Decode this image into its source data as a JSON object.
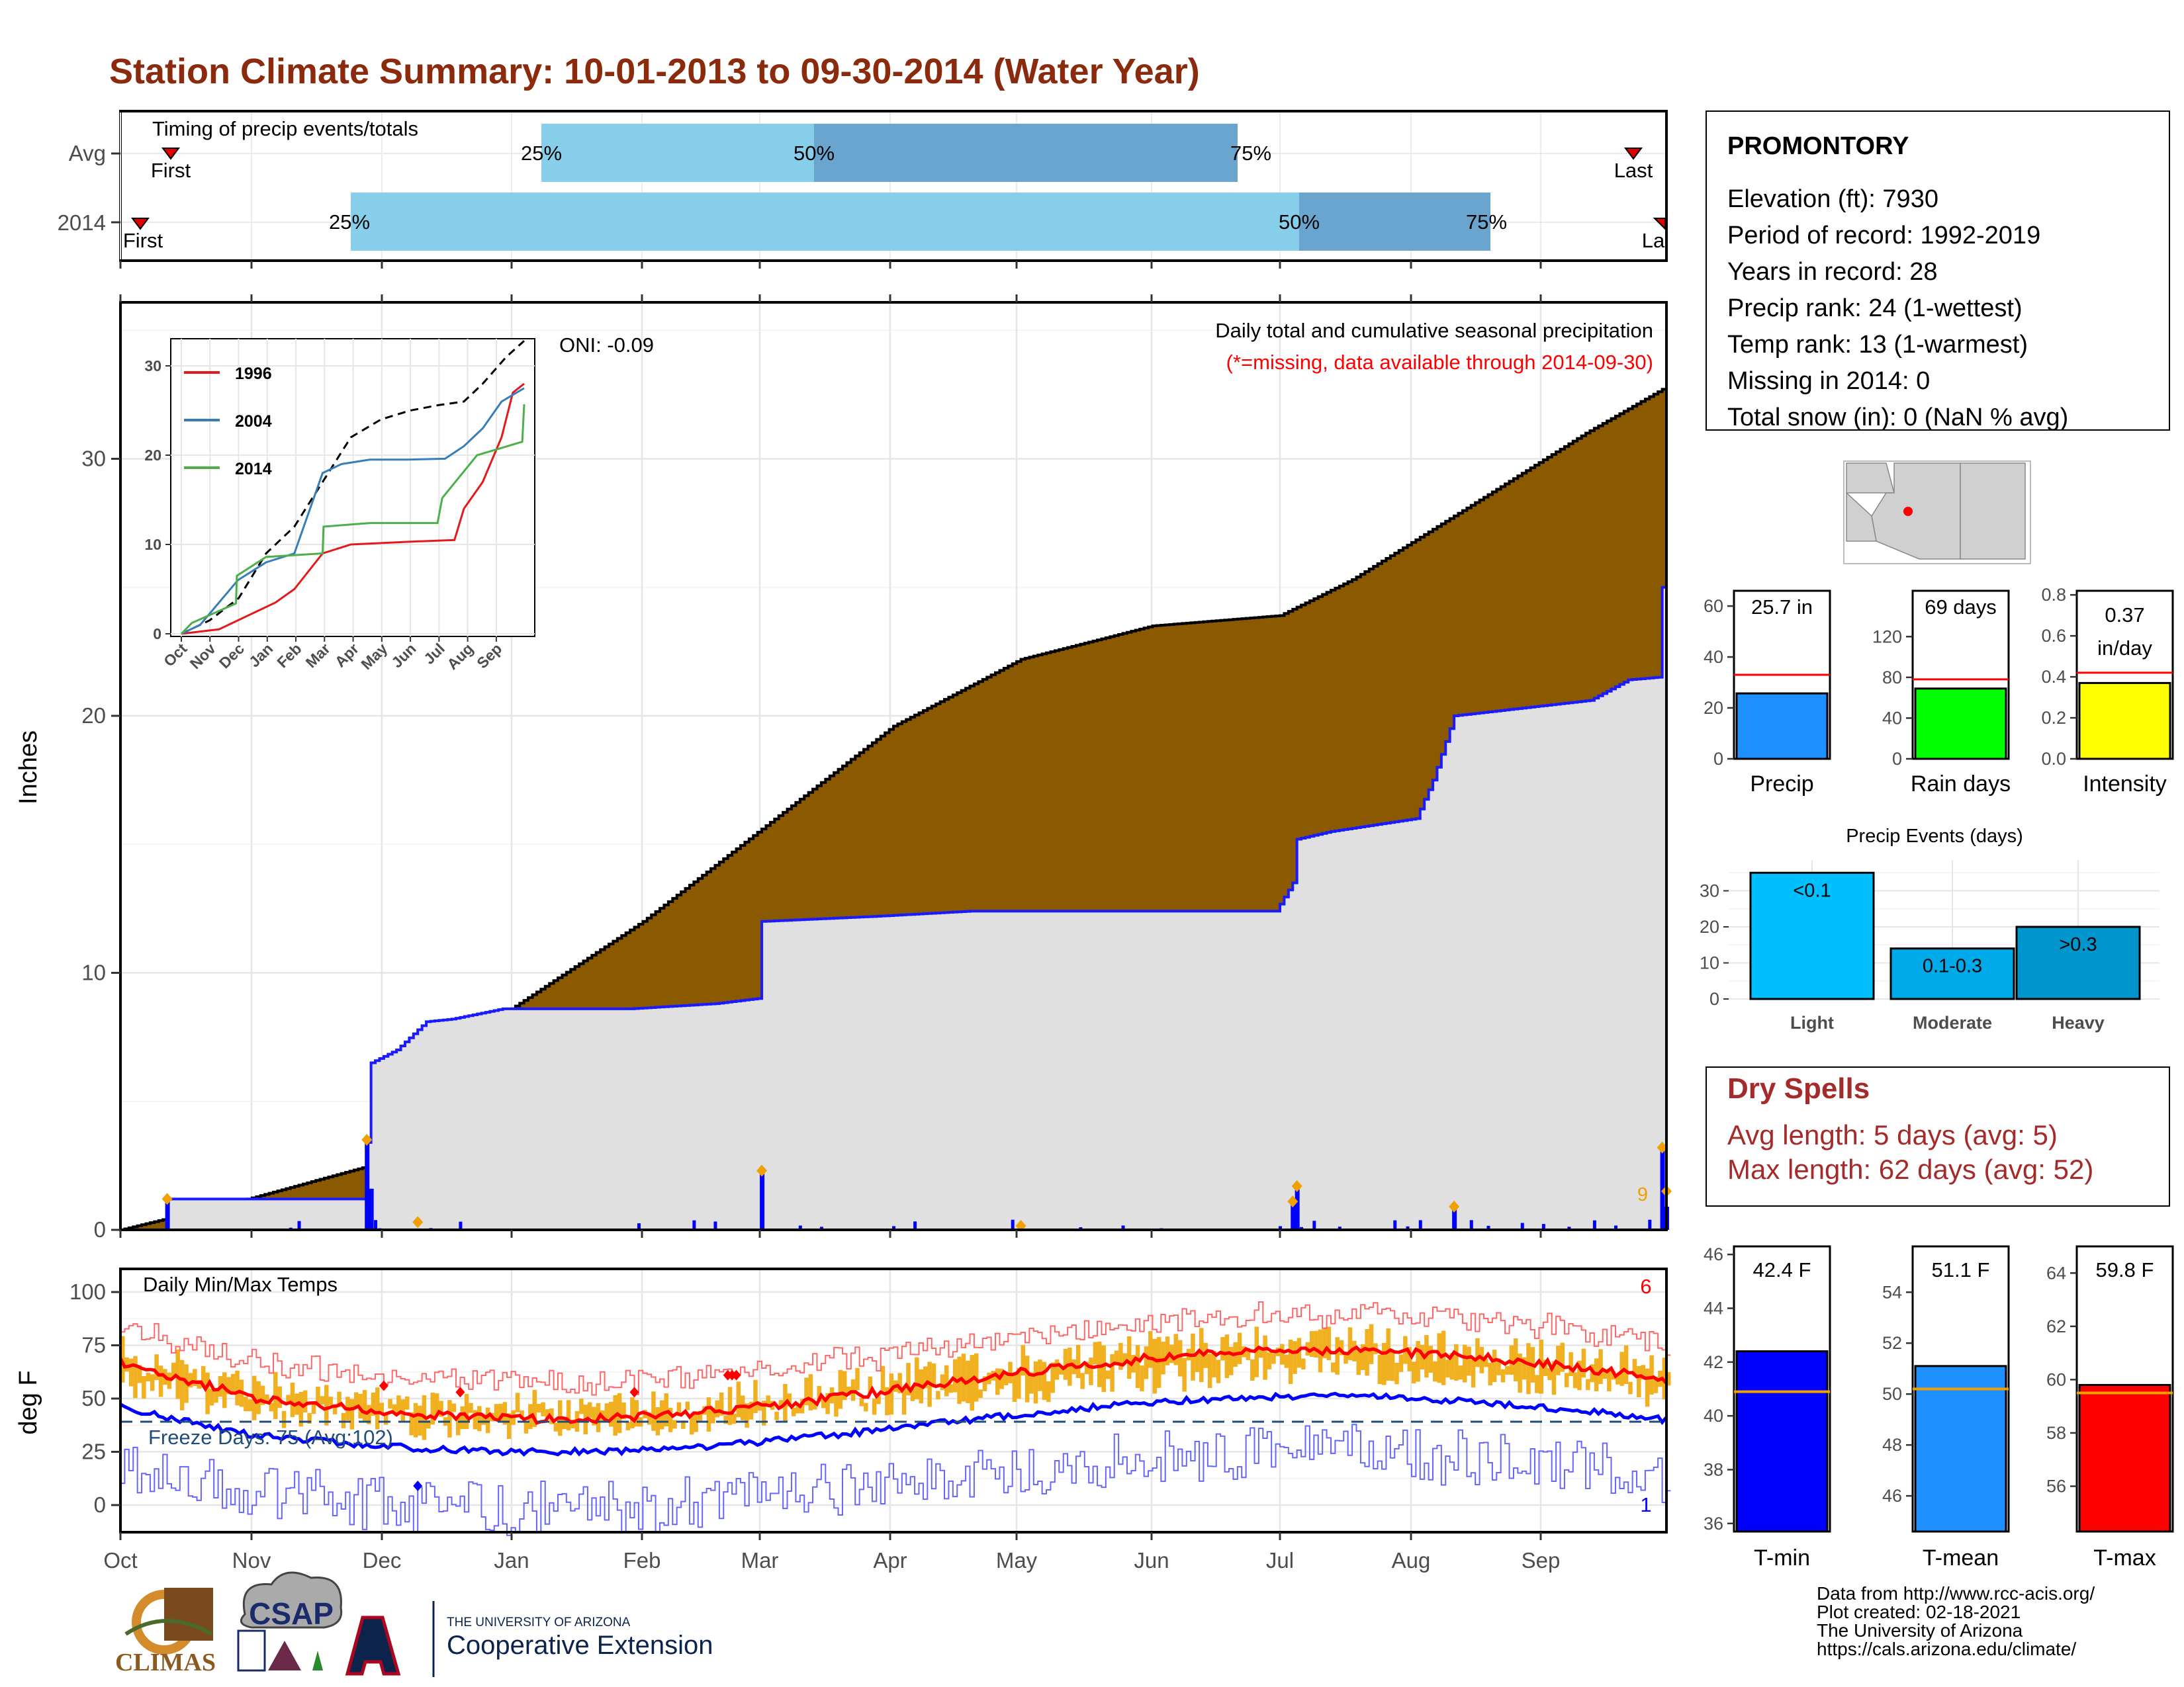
{
  "title": "Station Climate Summary: 10-01-2013 to 09-30-2014 (Water Year)",
  "colors": {
    "title": "#8b2a0c",
    "brown": "#8b5a00",
    "green": "#008000",
    "blue": "#0000ff",
    "lightblue": "#87ceeb",
    "midblue": "#6aa5cf",
    "gray": "#e0e0e0",
    "orange": "#f0b020",
    "red": "#ff0000",
    "dryspell": "#a52a2a"
  },
  "timing": {
    "title": "Timing of precip events/totals",
    "rows": [
      {
        "label": "Avg",
        "first_label": "First",
        "last_label": "Last",
        "q25": "25%",
        "q50": "50%",
        "q75": "75%"
      },
      {
        "label": "2014",
        "first_label": "First",
        "last_label": "La",
        "q25": "25%",
        "q50": "50%",
        "q75": "75%"
      }
    ]
  },
  "months": [
    "Oct",
    "Nov",
    "Dec",
    "Jan",
    "Feb",
    "Mar",
    "Apr",
    "May",
    "Jun",
    "Jul",
    "Aug",
    "Sep"
  ],
  "precip_panel": {
    "ylabel": "Inches",
    "yticks": [
      "0",
      "10",
      "20",
      "30"
    ],
    "title": "Daily total and cumulative seasonal precipitation",
    "subtitle": "(*=missing, data available through 2014-09-30)",
    "oni": "ONI: -0.09",
    "corner_count": "9"
  },
  "inset": {
    "yticks": [
      "0",
      "10",
      "20",
      "30"
    ],
    "months": [
      "Oct",
      "Nov",
      "Dec",
      "Jan",
      "Feb",
      "Mar",
      "Apr",
      "May",
      "Jun",
      "Jul",
      "Aug",
      "Sep"
    ],
    "legend": [
      "1996",
      "2004",
      "2014"
    ],
    "legend_colors": [
      "#e31a1c",
      "#377eb8",
      "#4daf4a"
    ]
  },
  "temp_panel": {
    "ylabel": "deg F",
    "yticks": [
      "0",
      "25",
      "50",
      "75",
      "100"
    ],
    "title": "Daily Min/Max Temps",
    "freeze": "Freeze Days: 75 (Avg:102)",
    "max_count": "6",
    "min_count": "1"
  },
  "station": {
    "name": "PROMONTORY",
    "lines": [
      "Elevation (ft): 7930",
      "Period of record: 1992-2019",
      "Years in record: 28",
      "Precip rank: 24 (1-wettest)",
      "Temp rank: 13 (1-warmest)",
      "Missing in 2014: 0",
      "Total snow (in): 0 (NaN % avg)"
    ]
  },
  "summary_bars": [
    {
      "name": "Precip",
      "label": "25.7 in",
      "value": 25.7,
      "avg": 33,
      "ymax": 66,
      "ticks": [
        "0",
        "20",
        "40",
        "60"
      ],
      "color": "#1e90ff"
    },
    {
      "name": "Rain days",
      "label": "69 days",
      "value": 69,
      "avg": 78,
      "ymax": 165,
      "ticks": [
        "0",
        "40",
        "80",
        "120"
      ],
      "color": "#00ff00"
    },
    {
      "name": "Intensity",
      "label": "0.37 in/day",
      "value": 0.37,
      "avg": 0.42,
      "ymax": 0.82,
      "ticks": [
        "0.0",
        "0.2",
        "0.4",
        "0.6",
        "0.8"
      ],
      "color": "#ffff00"
    }
  ],
  "events": {
    "title": "Precip Events (days)",
    "yticks": [
      "0",
      "10",
      "20",
      "30"
    ],
    "bars": [
      {
        "name": "Light",
        "label": "<0.1",
        "value": 35,
        "color": "#00bfff"
      },
      {
        "name": "Moderate",
        "label": "0.1-0.3",
        "value": 14,
        "color": "#00a9e8"
      },
      {
        "name": "Heavy",
        "label": ">0.3",
        "value": 20,
        "color": "#0095cc"
      }
    ]
  },
  "dry_spells": {
    "title": "Dry Spells",
    "avg": "Avg length: 5 days (avg: 5)",
    "max": "Max length: 62 days (avg: 52)"
  },
  "temp_bars": [
    {
      "name": "T-min",
      "label": "42.4 F",
      "value": 42.4,
      "avg": 40.9,
      "ticks": [
        "36",
        "38",
        "40",
        "42",
        "44",
        "46"
      ],
      "tmin": 35.7,
      "tmax": 46.3,
      "color": "#0000ff"
    },
    {
      "name": "T-mean",
      "label": "51.1 F",
      "value": 51.1,
      "avg": 50.2,
      "ticks": [
        "46",
        "48",
        "50",
        "52",
        "54"
      ],
      "tmin": 44.6,
      "tmax": 55.8,
      "color": "#1e90ff"
    },
    {
      "name": "T-max",
      "label": "59.8 F",
      "value": 59.8,
      "avg": 59.5,
      "ticks": [
        "56",
        "58",
        "60",
        "62",
        "64"
      ],
      "tmin": 54.3,
      "tmax": 65.0,
      "color": "#ff0000"
    }
  ],
  "footer": {
    "lines": [
      "Data from http://www.rcc-acis.org/",
      "Plot created: 02-18-2021",
      "The University of Arizona",
      "https://cals.arizona.edu/climate/"
    ],
    "climas": "CLIMAS",
    "csap": "CSAP",
    "ua_small": "THE UNIVERSITY OF ARIZONA",
    "ua_big": "Cooperative Extension"
  },
  "chart_data": [
    {
      "type": "area",
      "title": "Daily total and cumulative seasonal precipitation",
      "ylabel": "Inches",
      "ylim": [
        0,
        36
      ],
      "series": [
        {
          "name": "2014",
          "x": [
            "Oct",
            "Nov",
            "Dec",
            "Jan",
            "Feb",
            "Mar",
            "Apr",
            "May",
            "Jun",
            "Jul",
            "Aug",
            "Sep",
            "Sep 30"
          ],
          "values": [
            0,
            1.2,
            3.5,
            8.6,
            8.6,
            9.0,
            12.0,
            12.4,
            12.4,
            12.4,
            15.8,
            20.0,
            25.7
          ]
        }
      ]
    },
    {
      "type": "bar",
      "title": "Precip Events (days)",
      "categories": [
        "Light",
        "Moderate",
        "Heavy"
      ],
      "values": [
        35,
        14,
        20
      ]
    },
    {
      "type": "bar",
      "categories": [
        "Precip",
        "Rain days",
        "Intensity"
      ],
      "series": [
        {
          "name": "2014",
          "values": [
            25.7,
            69,
            0.37
          ]
        }
      ]
    },
    {
      "type": "bar",
      "categories": [
        "T-min",
        "T-mean",
        "T-max"
      ],
      "series": [
        {
          "name": "2014",
          "values": [
            42.4,
            51.1,
            59.8
          ]
        }
      ]
    }
  ]
}
